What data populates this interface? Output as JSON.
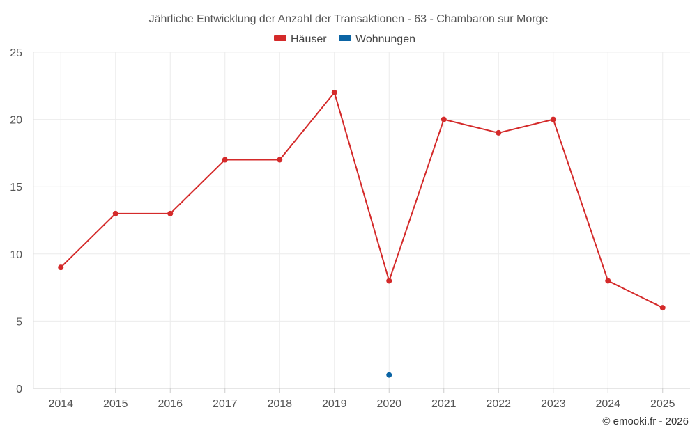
{
  "chart_data": {
    "type": "line",
    "title": "Jährliche Entwicklung der Anzahl der Transaktionen - 63 - Chambaron sur Morge",
    "categories": [
      "2014",
      "2015",
      "2016",
      "2017",
      "2018",
      "2019",
      "2020",
      "2021",
      "2022",
      "2023",
      "2024",
      "2025"
    ],
    "series": [
      {
        "name": "Häuser",
        "color": "#d42a2a",
        "values": [
          9,
          13,
          13,
          17,
          17,
          22,
          8,
          20,
          19,
          20,
          8,
          6
        ]
      },
      {
        "name": "Wohnungen",
        "color": "#0b64a4",
        "values": [
          null,
          null,
          null,
          null,
          null,
          null,
          1,
          null,
          null,
          null,
          null,
          null
        ]
      }
    ],
    "yticks": [
      "0",
      "5",
      "10",
      "15",
      "20",
      "25"
    ],
    "ylim": [
      0,
      25
    ],
    "xlabel": "",
    "ylabel": "",
    "grid": true,
    "legend_position": "top-center"
  },
  "credit": "© emooki.fr - 2026"
}
